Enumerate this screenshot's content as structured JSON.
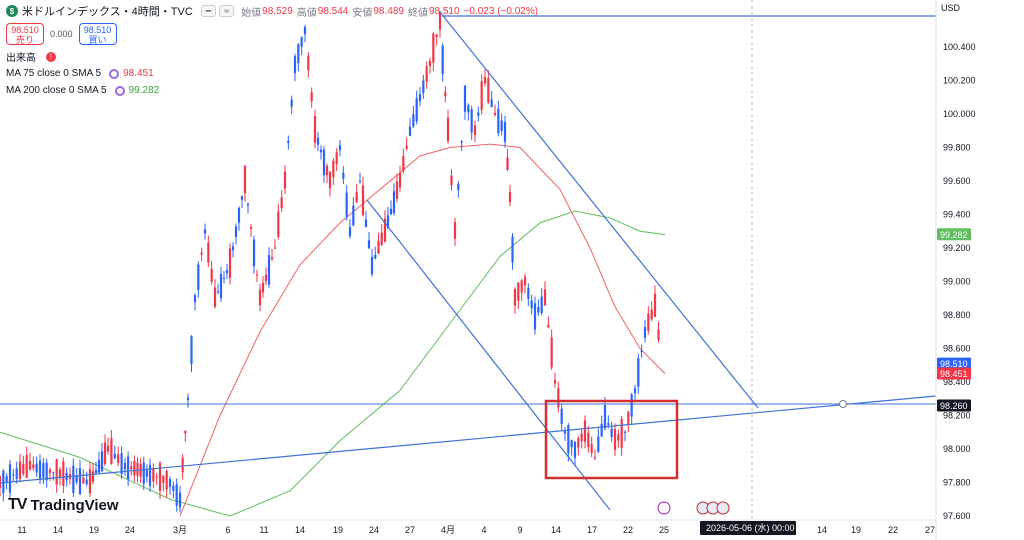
{
  "header": {
    "symbol_badge": "$",
    "title": "米ドルインデックス・4時間・TVC",
    "o_label": "始値",
    "o_value": "98.529",
    "h_label": "高値",
    "h_value": "98.544",
    "l_label": "安値",
    "l_value": "98.489",
    "c_label": "終値",
    "c_value": "98.510",
    "change": "−0.023 (−0.02%)"
  },
  "trade": {
    "sell_price": "98.510",
    "sell_label": "売り",
    "spread": "0.000",
    "buy_price": "98.510",
    "buy_label": "買い"
  },
  "indicators": {
    "volume_label": "出来高",
    "ma75_label": "MA 75 close 0 SMA 5",
    "ma75_value": "98.451",
    "ma200_label": "MA 200 close 0 SMA 5",
    "ma200_value": "99.282"
  },
  "currency": "USD",
  "branding": "TradingView",
  "colors": {
    "up": "#2962ff",
    "down": "#f23645",
    "ma75": "#f26262",
    "ma200": "#5fbf5f",
    "trend": "#3d72d8",
    "highlight_box": "#d32f2f"
  },
  "chart_data": {
    "type": "candlestick",
    "yaxis": {
      "ticks": [
        "100.400",
        "100.200",
        "100.000",
        "99.800",
        "99.600",
        "99.400",
        "99.200",
        "99.000",
        "98.800",
        "98.600",
        "98.400",
        "98.200",
        "98.000",
        "97.800",
        "97.600"
      ],
      "ylim": [
        97.6,
        100.6
      ]
    },
    "xaxis": {
      "ticks": [
        "11",
        "14",
        "19",
        "24",
        "3月",
        "6",
        "11",
        "14",
        "19",
        "24",
        "27",
        "4月",
        "4",
        "9",
        "14",
        "17",
        "22",
        "25",
        "14",
        "19",
        "22",
        "27"
      ]
    },
    "price_labels": {
      "ma200": "99.282",
      "last": "98.510",
      "ma75": "98.451",
      "crosshair": "98.260"
    },
    "crosshair_date": "2026-05-06 (水)  00:00",
    "series": [
      {
        "name": "MA 75",
        "values": [
          98.45
        ]
      },
      {
        "name": "MA 200",
        "values": [
          99.28
        ]
      }
    ],
    "grid": false
  }
}
